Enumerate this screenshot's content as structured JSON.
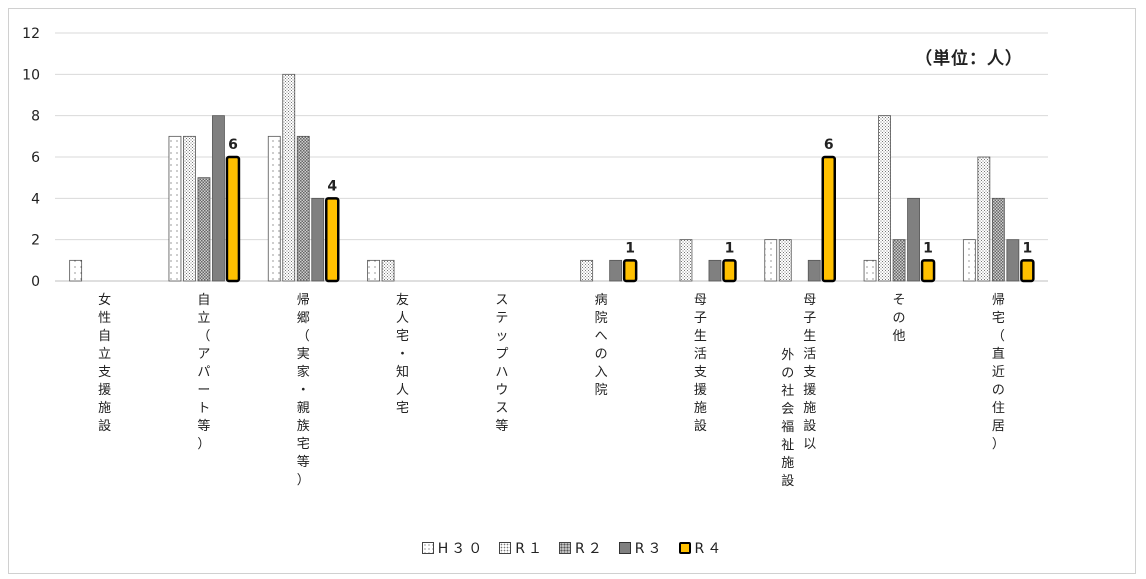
{
  "chart_data": {
    "type": "bar",
    "unit_label": "（単位：人）",
    "categories": [
      "女性自立支援施設",
      "自立（アパート等）",
      "帰郷（実家・親族宅等）",
      "友人宅・知人宅",
      "ステップハウス等",
      "病院への入院",
      "母子生活支援施設",
      "母子生活支援施設以外の社会福祉施設",
      "その他",
      "帰宅（直近の住居）"
    ],
    "series": [
      {
        "name": "H30",
        "values": [
          1,
          7,
          7,
          1,
          0,
          0,
          0,
          2,
          1,
          2
        ],
        "color": "#ffffff"
      },
      {
        "name": "R1",
        "values": [
          0,
          7,
          10,
          1,
          0,
          1,
          2,
          2,
          8,
          6
        ],
        "color": "#f2f2f2"
      },
      {
        "name": "R2",
        "values": [
          0,
          5,
          7,
          0,
          0,
          0,
          0,
          0,
          2,
          4
        ],
        "color": "#bfbfbf"
      },
      {
        "name": "R3",
        "values": [
          0,
          8,
          4,
          0,
          0,
          1,
          1,
          1,
          4,
          2
        ],
        "color": "#808080"
      },
      {
        "name": "R4",
        "values": [
          0,
          6,
          4,
          0,
          0,
          1,
          1,
          6,
          1,
          1
        ],
        "color": "#ffc000"
      }
    ],
    "data_labels": {
      "series": "R4",
      "values": [
        "",
        "6",
        "4",
        "",
        "",
        "1",
        "1",
        "6",
        "1",
        "1"
      ]
    },
    "y_ticks": [
      "0",
      "2",
      "4",
      "6",
      "8",
      "10",
      "12"
    ],
    "ylim": [
      0,
      12
    ],
    "grid": true,
    "legend_position": "bottom",
    "legend_labels": [
      "H３０",
      "R１",
      "R２",
      "R３",
      "R４"
    ]
  }
}
